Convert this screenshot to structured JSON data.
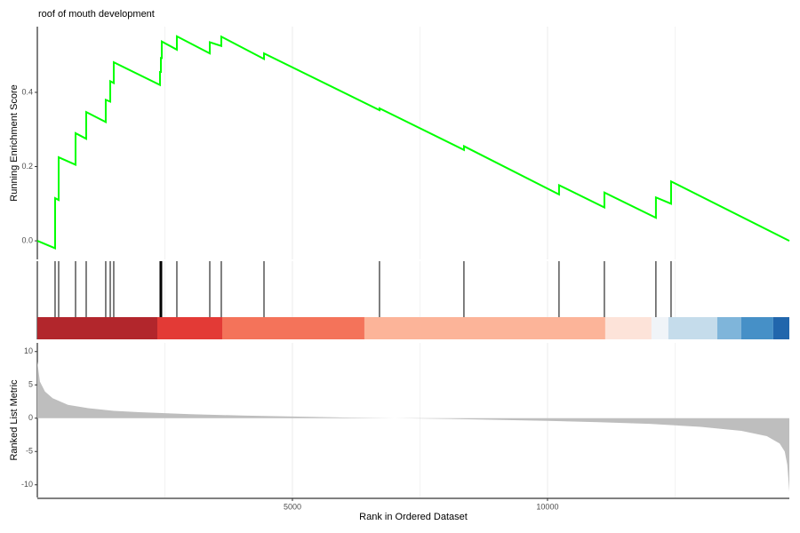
{
  "chart_data": [
    {
      "type": "line",
      "title": "roof of mouth development",
      "ylabel": "Running Enrichment Score",
      "xlim": [
        0,
        14740
      ],
      "ylim": [
        -0.05,
        0.577
      ],
      "yticks": [
        {
          "value": 0,
          "label": "0.0"
        },
        0.2,
        0.4
      ],
      "color": "#00ff00",
      "x": [
        0,
        348,
        348,
        418,
        418,
        749,
        749,
        958,
        958,
        1341,
        1341,
        1429,
        1429,
        1498,
        1498,
        2404,
        2404,
        2422,
        2422,
        2439,
        2439,
        2735,
        2735,
        3380,
        3380,
        3606,
        3606,
        4443,
        4443,
        6707,
        6707,
        8362,
        8362,
        10226,
        10226,
        11115,
        11115,
        12125,
        12125,
        12422,
        12422,
        14740
      ],
      "values": [
        0,
        -0.02,
        0.115,
        0.11,
        0.225,
        0.205,
        0.29,
        0.275,
        0.347,
        0.32,
        0.38,
        0.375,
        0.43,
        0.425,
        0.481,
        0.42,
        0.455,
        0.455,
        0.495,
        0.49,
        0.537,
        0.515,
        0.551,
        0.505,
        0.535,
        0.525,
        0.55,
        0.49,
        0.505,
        0.352,
        0.357,
        0.245,
        0.255,
        0.125,
        0.15,
        0.09,
        0.13,
        0.062,
        0.117,
        0.1,
        0.16,
        0
      ]
    },
    {
      "type": "rug",
      "xlim": [
        0,
        14740
      ],
      "hits": [
        348,
        418,
        749,
        958,
        1341,
        1429,
        1498,
        2404,
        2422,
        2439,
        2735,
        3380,
        3606,
        4443,
        6707,
        8362,
        10226,
        11115,
        12125,
        12422
      ],
      "color_bar_breaks": [
        0,
        2352,
        3624,
        6411,
        11132,
        12038,
        12369,
        13328,
        13798,
        14425,
        14740
      ],
      "color_bar_colors": [
        "#b2262c",
        "#e33a36",
        "#f4735a",
        "#fcb499",
        "#fde3d9",
        "#f0f4f8",
        "#c5dceb",
        "#7fb5da",
        "#4690c7",
        "#2166ac"
      ]
    },
    {
      "type": "area",
      "ylabel": "Ranked List Metric",
      "xlabel": "Rank in Ordered Dataset",
      "xlim": [
        0,
        14740
      ],
      "ylim": [
        -11.9,
        11.3
      ],
      "xticks": [
        5000,
        10000
      ],
      "minor_xticks": [
        2500,
        7500,
        12500
      ],
      "yticks": [
        -10,
        -5,
        0,
        5,
        10
      ],
      "color": "#bebebe",
      "x": [
        0,
        50,
        150,
        300,
        600,
        1000,
        1500,
        2000,
        3000,
        4000,
        5000,
        6000,
        7000,
        8000,
        9000,
        10000,
        11000,
        12000,
        13000,
        13800,
        14300,
        14550,
        14650,
        14700,
        14740
      ],
      "values": [
        8.5,
        5.5,
        4,
        3,
        2,
        1.5,
        1.1,
        0.9,
        0.6,
        0.4,
        0.25,
        0.1,
        0,
        -0.1,
        -0.25,
        -0.4,
        -0.6,
        -0.85,
        -1.3,
        -1.9,
        -2.7,
        -3.8,
        -5,
        -7,
        -11
      ]
    }
  ]
}
